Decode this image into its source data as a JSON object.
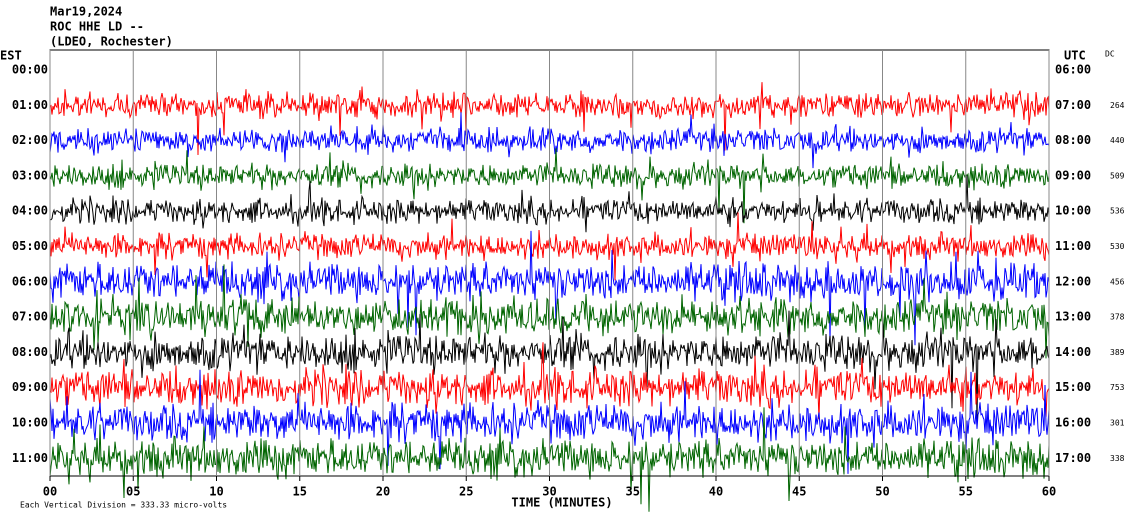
{
  "header": {
    "lines": [
      "Mar19,2024",
      "ROC HHE LD --",
      "(LDEO, Rochester)"
    ]
  },
  "left_axis": {
    "title": "EST",
    "labels": [
      "00:00",
      "01:00",
      "02:00",
      "03:00",
      "04:00",
      "05:00",
      "06:00",
      "07:00",
      "08:00",
      "09:00",
      "10:00",
      "11:00"
    ]
  },
  "right_axis": {
    "title": "UTC",
    "labels": [
      "06:00",
      "07:00",
      "08:00",
      "09:00",
      "10:00",
      "11:00",
      "12:00",
      "13:00",
      "14:00",
      "15:00",
      "16:00",
      "17:00"
    ]
  },
  "dc": {
    "title": "DC",
    "values": [
      null,
      264,
      440,
      509,
      536,
      530,
      456,
      378,
      389,
      753,
      301,
      338
    ]
  },
  "x_axis": {
    "label": "TIME (MINUTES)",
    "xlim": [
      0,
      60
    ],
    "ticks": [
      {
        "value": 0,
        "label": "00"
      },
      {
        "value": 5,
        "label": "05"
      },
      10,
      15,
      20,
      25,
      30,
      35,
      40,
      45,
      50,
      55,
      60
    ]
  },
  "footer": "Each Vertical Division = 333.33 micro-volts",
  "trace_colors": [
    "#000000",
    "#ff0000",
    "#0000ff",
    "#006400"
  ]
}
